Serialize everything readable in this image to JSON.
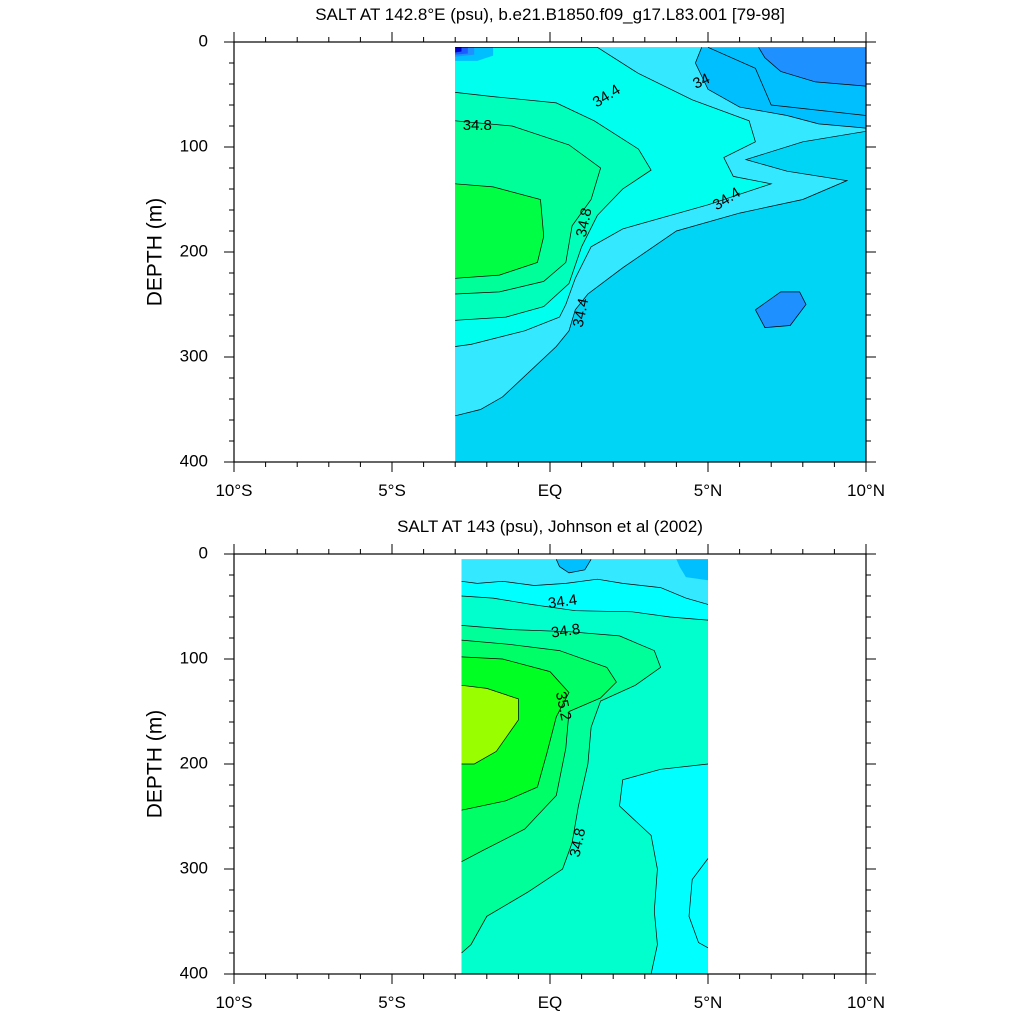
{
  "chart_data": [
    {
      "type": "contour",
      "title": "SALT AT 142.8°E (psu), b.e21.B1850.f09_g17.L83.001 [79-98]",
      "ylabel": "DEPTH (m)",
      "xlabel": "",
      "x_ticks": [
        "10°S",
        "5°S",
        "EQ",
        "5°N",
        "10°N"
      ],
      "x_tick_values": [
        -10,
        -5,
        0,
        5,
        10
      ],
      "y_ticks": [
        "0",
        "100",
        "200",
        "300",
        "400"
      ],
      "y_tick_values": [
        0,
        100,
        200,
        300,
        400
      ],
      "xlim": [
        -10,
        10
      ],
      "ylim": [
        0,
        400
      ],
      "y_inverted": true,
      "data_extent_x": [
        -3,
        10
      ],
      "contour_labels": [
        {
          "text": "34",
          "x": 4.8,
          "y": 38
        },
        {
          "text": "34.4",
          "x": 1.8,
          "y": 52
        },
        {
          "text": "34.8",
          "x": -2.3,
          "y": 80
        },
        {
          "text": "34.8",
          "x": 1.1,
          "y": 172
        },
        {
          "text": "34.4",
          "x": 5.6,
          "y": 150
        },
        {
          "text": "34.4",
          "x": 1.0,
          "y": 258
        }
      ],
      "colors": {
        "fill_background": "#00d5f5",
        "fill_34": "#1e90ff",
        "fill_34_2": "#00bfff",
        "fill_34_4": "#33e8ff",
        "fill_34_6": "#00ffee",
        "fill_34_8": "#00ffbb",
        "fill_35": "#00ff99",
        "fill_35_2": "#00ff44",
        "fill_35_4": "#99ff00",
        "fresh_core_1": "#0000cc",
        "fresh_core_2": "#1a5cff"
      }
    },
    {
      "type": "contour",
      "title": "SALT AT 143 (psu), Johnson et al (2002)",
      "ylabel": "DEPTH (m)",
      "xlabel": "",
      "x_ticks": [
        "10°S",
        "5°S",
        "EQ",
        "5°N",
        "10°N"
      ],
      "x_tick_values": [
        -10,
        -5,
        0,
        5,
        10
      ],
      "y_ticks": [
        "0",
        "100",
        "200",
        "300",
        "400"
      ],
      "y_tick_values": [
        0,
        100,
        200,
        300,
        400
      ],
      "xlim": [
        -10,
        10
      ],
      "ylim": [
        0,
        400
      ],
      "y_inverted": true,
      "data_extent_x": [
        -2.8,
        5
      ],
      "contour_labels": [
        {
          "text": "34.4",
          "x": 0.4,
          "y": 46
        },
        {
          "text": "34.8",
          "x": 0.5,
          "y": 74
        },
        {
          "text": "35.2",
          "x": 0.4,
          "y": 145
        },
        {
          "text": "34.8",
          "x": 0.9,
          "y": 275
        }
      ]
    }
  ]
}
